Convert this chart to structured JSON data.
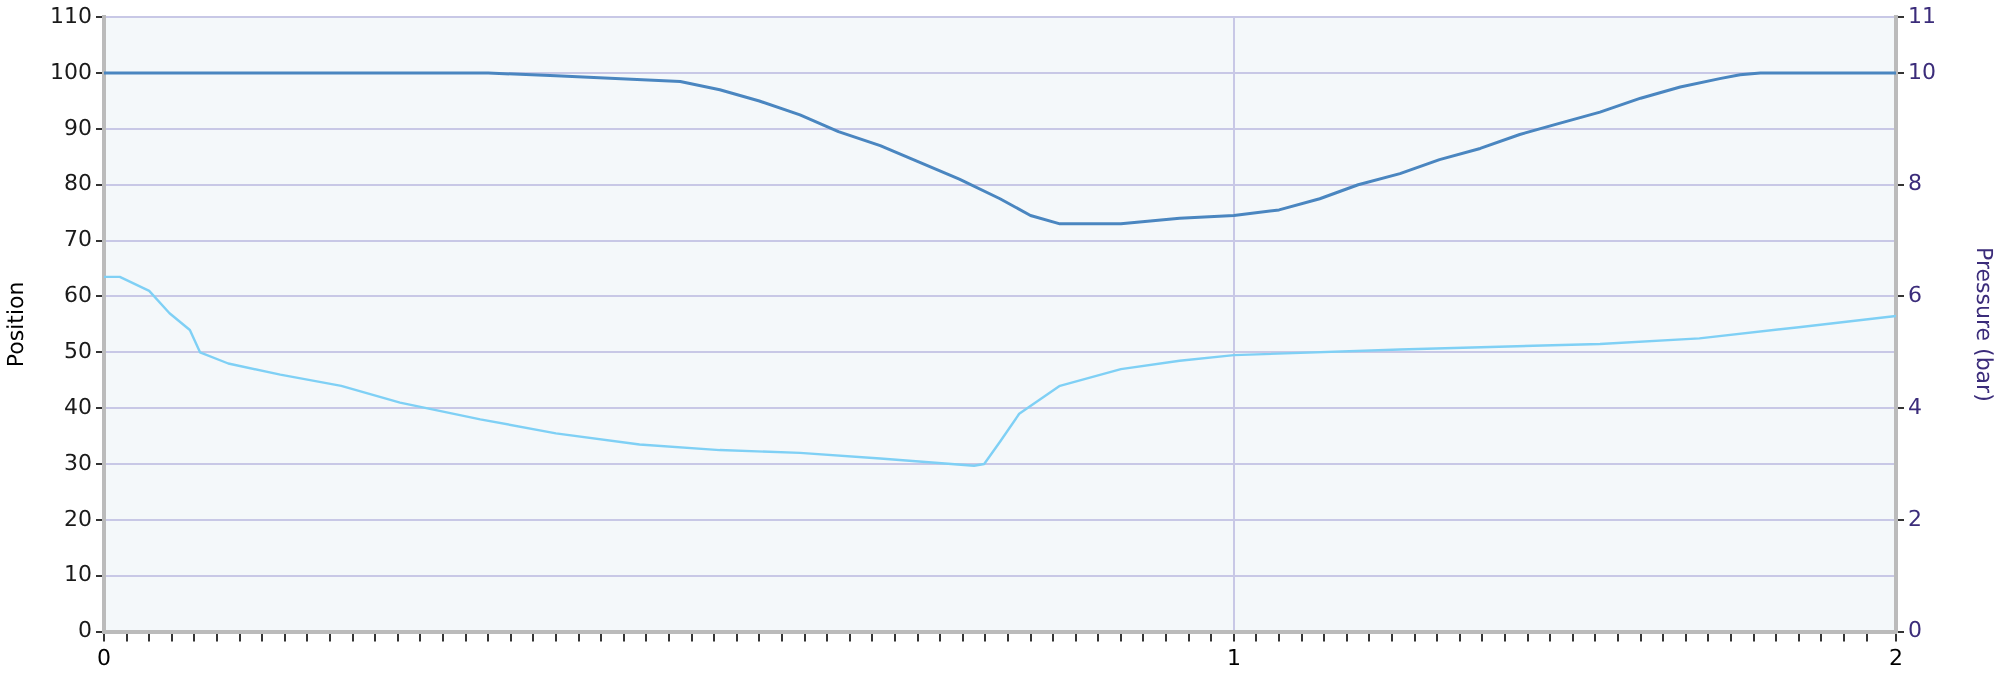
{
  "chart_data": {
    "type": "line",
    "ylabel": "Position",
    "y2label": "Pressure (bar)",
    "xlim": [
      0,
      1.586
    ],
    "xticks": [
      0,
      {
        "value": 0.02,
        "label": null
      },
      {
        "value": 0.04,
        "label": null
      },
      {
        "value": 0.06,
        "label": null
      },
      {
        "value": 0.08,
        "label": null
      },
      {
        "value": 0.1,
        "label": null
      },
      {
        "value": 0.12,
        "label": null
      },
      {
        "value": 0.14,
        "label": null
      },
      {
        "value": 0.16,
        "label": null
      },
      {
        "value": 0.18,
        "label": null
      },
      {
        "value": 0.2,
        "label": null
      },
      {
        "value": 0.22,
        "label": null
      },
      {
        "value": 0.24,
        "label": null
      },
      {
        "value": 0.26,
        "label": null
      },
      {
        "value": 0.28,
        "label": null
      },
      {
        "value": 0.3,
        "label": null
      },
      {
        "value": 0.32,
        "label": null
      },
      {
        "value": 0.34,
        "label": null
      },
      {
        "value": 0.36,
        "label": null
      },
      {
        "value": 0.38,
        "label": null
      },
      {
        "value": 0.4,
        "label": null
      },
      {
        "value": 0.42,
        "label": null
      },
      {
        "value": 0.44,
        "label": null
      },
      {
        "value": 0.46,
        "label": null
      },
      {
        "value": 0.48,
        "label": null
      },
      {
        "value": 0.5,
        "label": null
      },
      {
        "value": 0.52,
        "label": null
      },
      {
        "value": 0.54,
        "label": null
      },
      {
        "value": 0.56,
        "label": null
      },
      {
        "value": 0.58,
        "label": null
      },
      {
        "value": 0.6,
        "label": null
      },
      {
        "value": 0.62,
        "label": null
      },
      {
        "value": 0.64,
        "label": null
      },
      {
        "value": 0.66,
        "label": null
      },
      {
        "value": 0.68,
        "label": null
      },
      {
        "value": 0.7,
        "label": null
      },
      {
        "value": 0.72,
        "label": null
      },
      {
        "value": 0.74,
        "label": null
      },
      {
        "value": 0.76,
        "label": null
      },
      {
        "value": 0.78,
        "label": null
      },
      {
        "value": 0.8,
        "label": null
      },
      {
        "value": 0.82,
        "label": null
      },
      {
        "value": 0.84,
        "label": null
      },
      {
        "value": 0.86,
        "label": null
      },
      {
        "value": 0.88,
        "label": null
      },
      {
        "value": 0.9,
        "label": null
      },
      {
        "value": 0.92,
        "label": null
      },
      {
        "value": 0.94,
        "label": null
      },
      {
        "value": 0.96,
        "label": null
      },
      {
        "value": 0.98,
        "label": null
      },
      1,
      {
        "value": 1.02,
        "label": null
      },
      {
        "value": 1.04,
        "label": null
      },
      {
        "value": 1.06,
        "label": null
      },
      {
        "value": 1.08,
        "label": null
      },
      {
        "value": 1.1,
        "label": null
      },
      {
        "value": 1.12,
        "label": null
      },
      {
        "value": 1.14,
        "label": null
      },
      {
        "value": 1.16,
        "label": null
      },
      {
        "value": 1.18,
        "label": null
      },
      {
        "value": 1.2,
        "label": null
      },
      {
        "value": 1.22,
        "label": null
      },
      {
        "value": 1.24,
        "label": null
      },
      {
        "value": 1.26,
        "label": null
      },
      {
        "value": 1.28,
        "label": null
      },
      {
        "value": 1.3,
        "label": null
      },
      {
        "value": 1.32,
        "label": null
      },
      {
        "value": 1.34,
        "label": null
      },
      {
        "value": 1.36,
        "label": null
      },
      {
        "value": 1.38,
        "label": null
      },
      {
        "value": 1.4,
        "label": null
      },
      {
        "value": 1.42,
        "label": null
      },
      {
        "value": 1.44,
        "label": null
      },
      {
        "value": 1.46,
        "label": null
      },
      {
        "value": 1.48,
        "label": null
      },
      {
        "value": 1.5,
        "label": null
      },
      {
        "value": 1.52,
        "label": null
      },
      {
        "value": 1.54,
        "label": null
      },
      {
        "value": 1.56,
        "label": null
      },
      {
        "value": 1.586,
        "label": "2"
      }
    ],
    "ylim": [
      0,
      110
    ],
    "yticks": [
      0,
      10,
      20,
      30,
      40,
      50,
      60,
      70,
      80,
      90,
      100,
      110
    ],
    "y2lim": [
      0,
      11
    ],
    "y2ticks": [
      0,
      2,
      4,
      6,
      8,
      10,
      11
    ],
    "grid": true,
    "legend": false,
    "marker": "none",
    "line_style": "solid",
    "series": [
      {
        "color": "#4a86c0",
        "x": [
          0,
          0.34,
          0.4,
          0.51,
          0.545,
          0.58,
          0.616,
          0.65,
          0.687,
          0.722,
          0.757,
          0.793,
          0.82,
          0.846,
          0.9,
          0.952,
          1.0,
          1.04,
          1.076,
          1.11,
          1.147,
          1.182,
          1.218,
          1.253,
          1.288,
          1.324,
          1.36,
          1.395,
          1.43,
          1.448,
          1.466,
          1.586
        ],
        "values": [
          100,
          100,
          99.5,
          98.5,
          97,
          95,
          92.5,
          89.5,
          87,
          84,
          81,
          77.5,
          74.5,
          73,
          73,
          74,
          74.5,
          75.5,
          77.5,
          80,
          82,
          84.5,
          86.5,
          89,
          91,
          93,
          95.5,
          97.5,
          99,
          99.7,
          100,
          100
        ]
      },
      {
        "color": "#7fd0f5",
        "axis": "y2",
        "x": [
          0,
          0.014,
          0.04,
          0.058,
          0.076,
          0.085,
          0.11,
          0.156,
          0.21,
          0.262,
          0.333,
          0.4,
          0.474,
          0.545,
          0.616,
          0.687,
          0.77,
          0.779,
          0.793,
          0.81,
          0.846,
          0.9,
          0.952,
          1.0,
          1.147,
          1.324,
          1.412,
          1.5,
          1.586
        ],
        "values": [
          6.35,
          6.35,
          6.1,
          5.7,
          5.4,
          5.0,
          4.8,
          4.6,
          4.4,
          4.1,
          3.8,
          3.55,
          3.35,
          3.25,
          3.2,
          3.1,
          2.97,
          3.0,
          3.4,
          3.9,
          4.4,
          4.7,
          4.85,
          4.95,
          5.05,
          5.15,
          5.25,
          5.45,
          5.65
        ]
      }
    ]
  }
}
